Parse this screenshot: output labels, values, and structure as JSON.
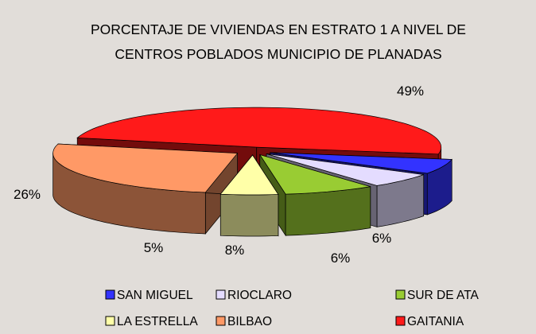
{
  "chart_data": {
    "type": "pie3d",
    "title": "PORCENTAJE DE VIVIENDAS EN ESTRATO 1 A NIVEL DE CENTROS POBLADOS MUNICIPIO DE PLANADAS",
    "categories": [
      "SAN MIGUEL",
      "RIOCLARO",
      "SUR DE ATA",
      "LA ESTRELLA",
      "BILBAO",
      "GAITANIA"
    ],
    "values": [
      6,
      6,
      8,
      5,
      26,
      49
    ],
    "value_labels": [
      "6%",
      "6%",
      "8%",
      "5%",
      "26%",
      "49%"
    ],
    "colors": [
      "#3333ff",
      "#e4dcff",
      "#99cc33",
      "#ffffa8",
      "#ff9966",
      "#ff1a1a"
    ],
    "legend": "bottom"
  }
}
